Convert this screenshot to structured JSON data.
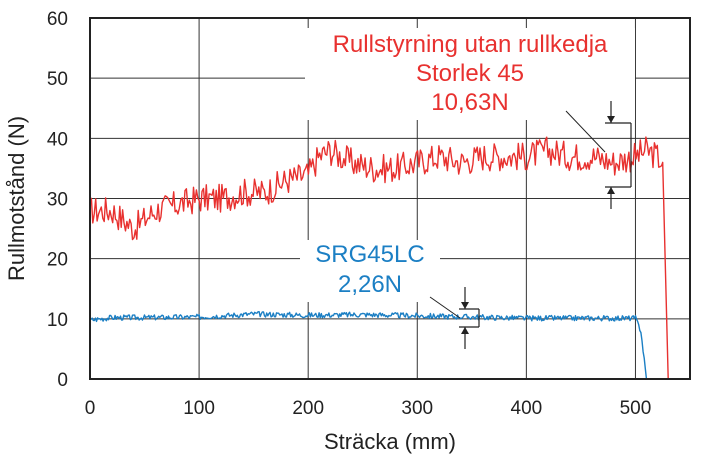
{
  "chart_data": {
    "type": "line",
    "xlabel": "Sträcka (mm)",
    "ylabel": "Rullmotstånd (N)",
    "xlim": [
      0,
      550
    ],
    "ylim": [
      0,
      60
    ],
    "xticks": [
      "0",
      "100",
      "200",
      "300",
      "400",
      "500"
    ],
    "yticks": [
      "0",
      "10",
      "20",
      "30",
      "40",
      "50",
      "60"
    ],
    "grid": true,
    "series": [
      {
        "color": "#e8312f",
        "annotation": [
          "Rullstyrning utan rullkedja",
          "Storlek 45",
          "10,63N"
        ],
        "x": [
          0,
          20,
          40,
          60,
          80,
          100,
          120,
          140,
          160,
          180,
          200,
          210,
          220,
          240,
          260,
          280,
          300,
          320,
          340,
          360,
          380,
          400,
          420,
          440,
          460,
          480,
          500,
          510,
          520,
          525,
          530
        ],
        "y": [
          28,
          28,
          25,
          28,
          29,
          30,
          30,
          31,
          31,
          33,
          34,
          37,
          38,
          36,
          35,
          35,
          36,
          37,
          36,
          37,
          37,
          37,
          38,
          37,
          37,
          36,
          37,
          38,
          37,
          36,
          0
        ]
      },
      {
        "color": "#1b7fc4",
        "annotation": [
          "SRG45LC",
          "2,26N"
        ],
        "x": [
          0,
          20,
          50,
          100,
          150,
          200,
          250,
          300,
          350,
          400,
          450,
          500,
          505,
          510,
          525
        ],
        "y": [
          9.8,
          10.2,
          10.2,
          10.3,
          10.8,
          10.6,
          10.7,
          10.5,
          10.3,
          10.1,
          10.1,
          10.1,
          8,
          0,
          0
        ]
      }
    ]
  }
}
